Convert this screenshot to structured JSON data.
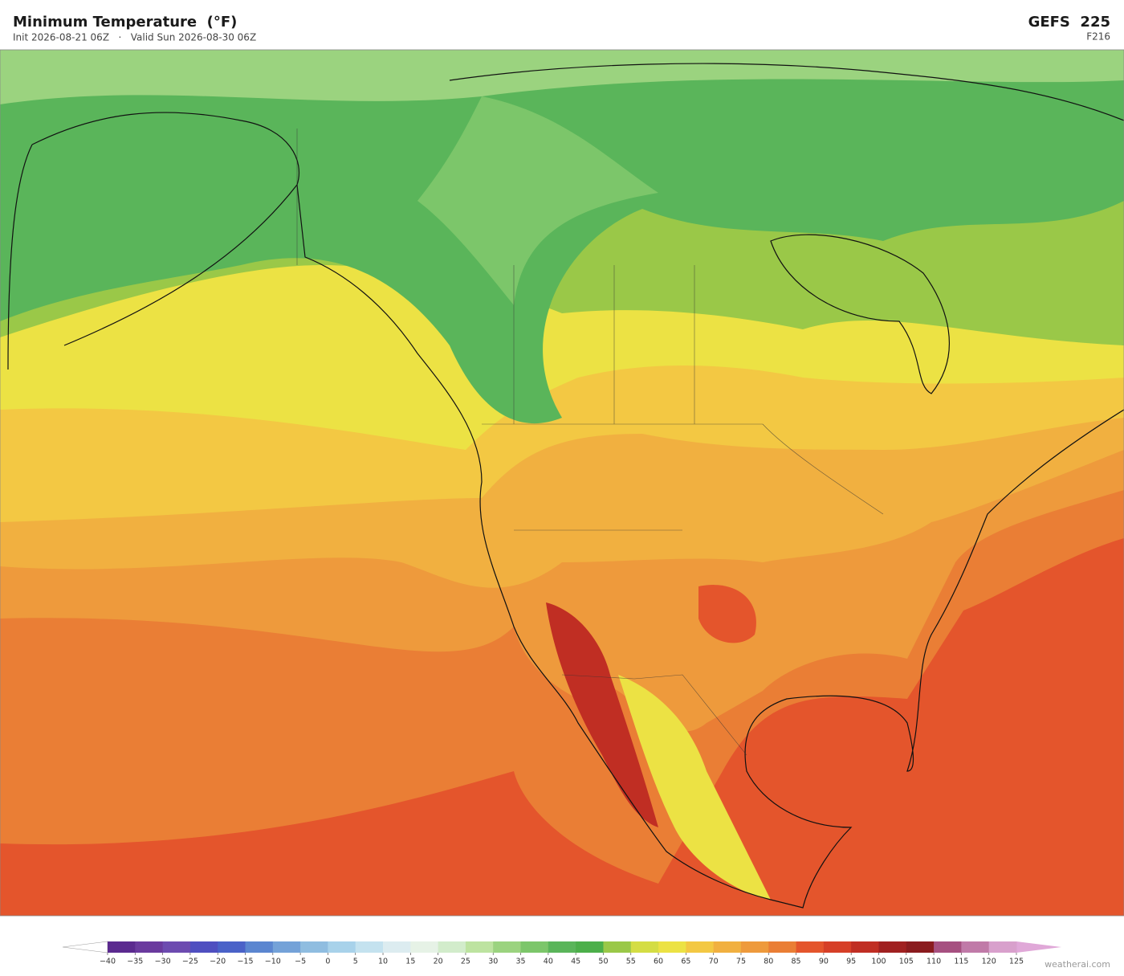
{
  "header": {
    "title": "Minimum Temperature  (°F)",
    "subtitle": "Init 2026-08-21 06Z   ·   Valid Sun 2026-08-30 06Z",
    "model": "GEFS  225",
    "forecast_hour": "F216"
  },
  "colorbar": {
    "ticks": [
      {
        "value": -40,
        "label": "−40"
      },
      {
        "value": -35,
        "label": "−35"
      },
      {
        "value": -30,
        "label": "−30"
      },
      {
        "value": -25,
        "label": "−25"
      },
      {
        "value": -20,
        "label": "−20"
      },
      {
        "value": -15,
        "label": "−15"
      },
      {
        "value": -10,
        "label": "−10"
      },
      {
        "value": -5,
        "label": "−5"
      },
      0,
      5,
      10,
      15,
      20,
      25,
      30,
      35,
      40,
      45,
      50,
      55,
      60,
      65,
      70,
      75,
      80,
      85,
      90,
      95,
      100,
      105,
      110,
      115,
      120,
      125
    ],
    "colors": [
      "#5b2a8f",
      "#6a3a9e",
      "#6d4bb0",
      "#4f4fc0",
      "#4a62c8",
      "#5b86d0",
      "#74a2d8",
      "#8fbde0",
      "#a8d2ea",
      "#c4e2ef",
      "#dcecf0",
      "#e6f2e6",
      "#d2eccb",
      "#bde3a0",
      "#9bd37f",
      "#7cc66a",
      "#5ab55a",
      "#4caf4a",
      "#9ac848",
      "#d4dd44",
      "#ece244",
      "#f3c843",
      "#f1b040",
      "#ee9a3c",
      "#ea7e35",
      "#e4552c",
      "#d63f27",
      "#c02e23",
      "#a02020",
      "#8a1b1e",
      "#a65080",
      "#c07aa8",
      "#d8a0cc"
    ],
    "under_color": "#ffffff",
    "over_color": "#e0a8d8"
  },
  "watermark": "weatherai.com"
}
